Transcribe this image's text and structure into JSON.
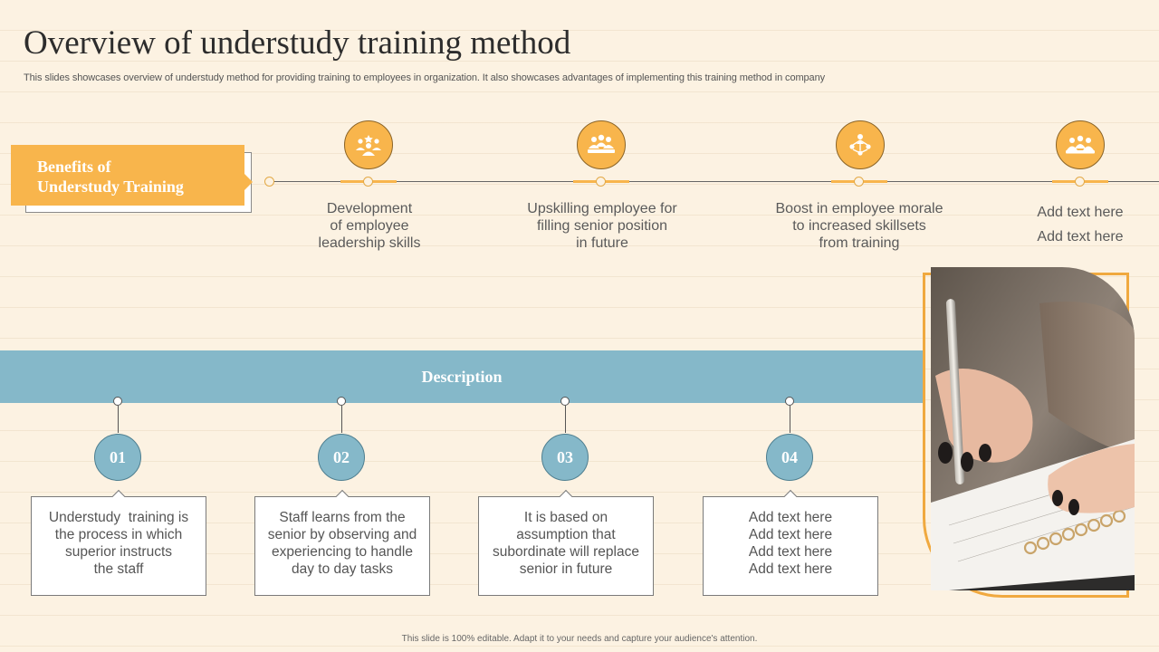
{
  "title": "Overview of understudy training method",
  "subtitle": "This slides showcases overview of understudy method for providing training to employees in organization. It also showcases advantages of implementing this training method in company",
  "benefits": {
    "label_line1": "Benefits of",
    "label_line2": "Understudy Training",
    "items": [
      {
        "icon": "team-leader-icon",
        "lines": [
          "Development",
          "of employee",
          "leadership skills"
        ]
      },
      {
        "icon": "group-meeting-icon",
        "lines": [
          "Upskilling employee for",
          "filling senior position",
          "in future"
        ]
      },
      {
        "icon": "team-network-icon",
        "lines": [
          "Boost in employee morale",
          "to increased skillsets",
          "from training"
        ]
      },
      {
        "icon": "group-icon",
        "lines": [
          "Add text here",
          "Add text here"
        ]
      }
    ]
  },
  "description": {
    "label": "Description",
    "items": [
      {
        "number": "01",
        "lines": [
          "Understudy  training is",
          "the process in which",
          "superior instructs",
          "the staff"
        ]
      },
      {
        "number": "02",
        "lines": [
          "Staff learns from the",
          "senior by observing and",
          "experiencing to handle",
          "day to day tasks"
        ]
      },
      {
        "number": "03",
        "lines": [
          "It is based on",
          "assumption that",
          "subordinate will replace",
          "senior in future"
        ]
      },
      {
        "number": "04",
        "lines": [
          "Add text here",
          "Add text here",
          "Add text here",
          "Add text here"
        ]
      }
    ]
  },
  "colors": {
    "accent": "#f8b54c",
    "blue": "#85b8c9",
    "background": "#fcf2e2"
  },
  "footer": "This slide is 100% editable. Adapt it to your needs and capture your audience's attention."
}
